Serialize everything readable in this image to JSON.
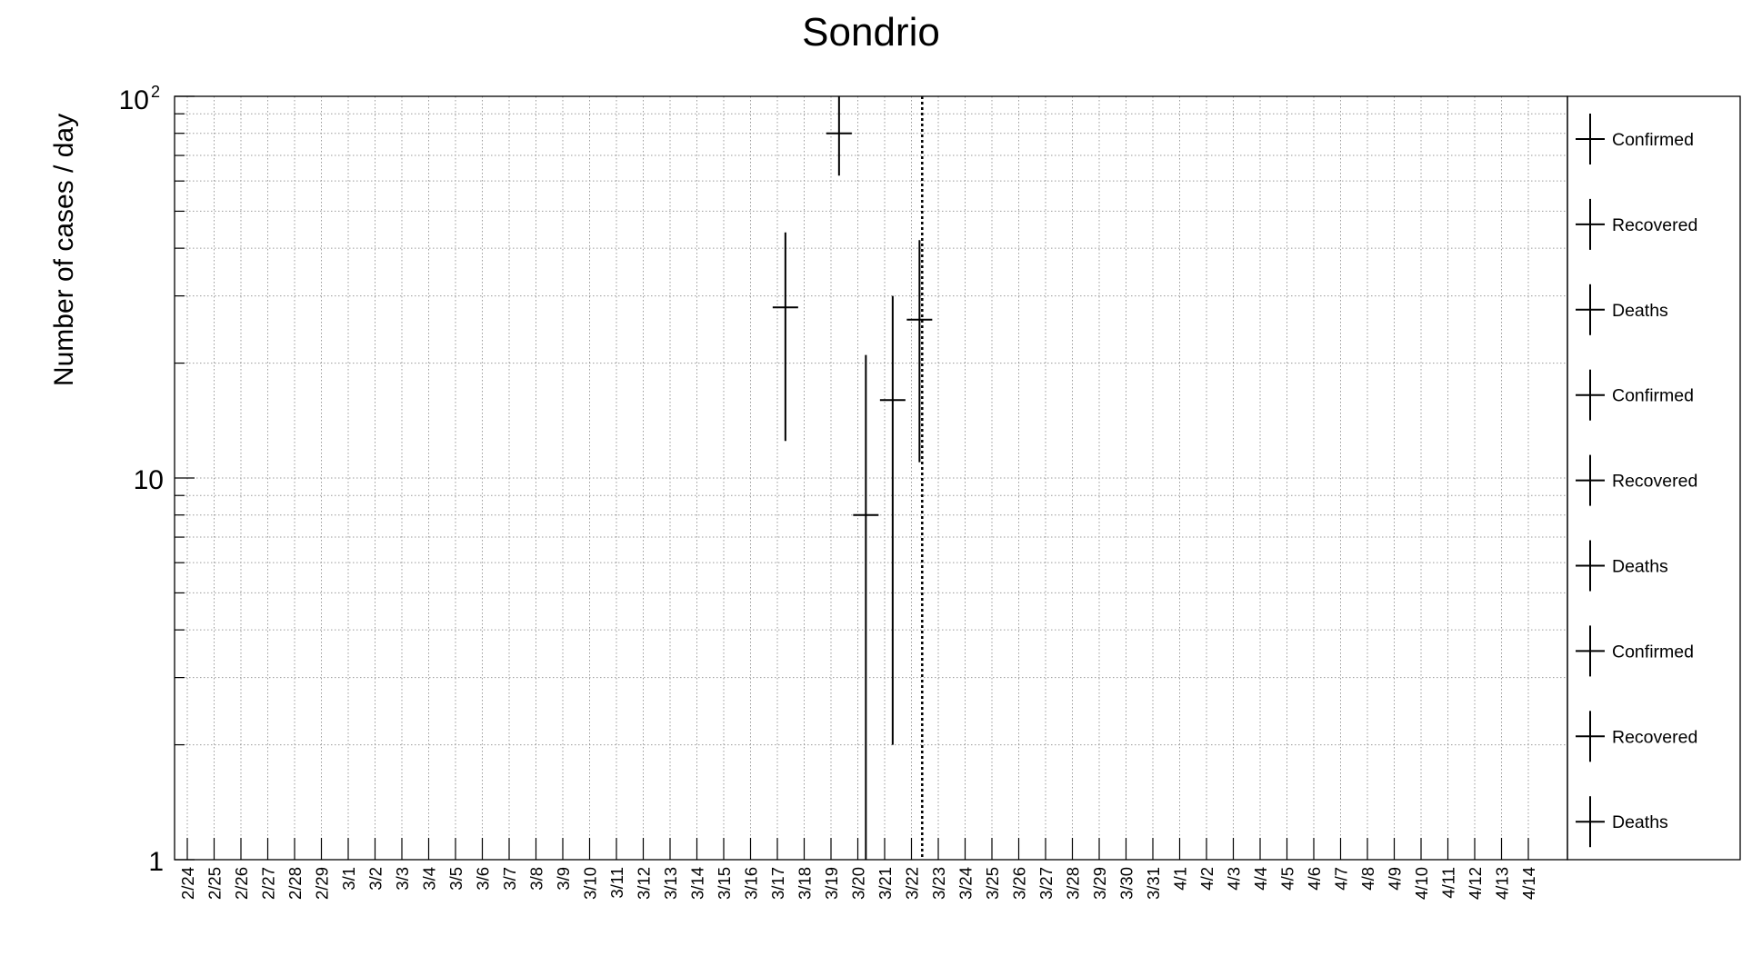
{
  "chart_data": {
    "type": "scatter",
    "title": "Sondrio",
    "ylabel": "Number of cases / day",
    "xlabel": "",
    "yscale": "log",
    "ylim": [
      1,
      100
    ],
    "ytick_labels": {
      "one": "1",
      "ten": "10",
      "hundred_base": "10",
      "hundred_exp": "2"
    },
    "grid": true,
    "categories": [
      "2/24",
      "2/25",
      "2/26",
      "2/27",
      "2/28",
      "2/29",
      "3/1",
      "3/2",
      "3/3",
      "3/4",
      "3/5",
      "3/6",
      "3/7",
      "3/8",
      "3/9",
      "3/10",
      "3/11",
      "3/12",
      "3/13",
      "3/14",
      "3/15",
      "3/16",
      "3/17",
      "3/18",
      "3/19",
      "3/20",
      "3/21",
      "3/22",
      "3/23",
      "3/24",
      "3/25",
      "3/26",
      "3/27",
      "3/28",
      "3/29",
      "3/30",
      "3/31",
      "4/1",
      "4/2",
      "4/3",
      "4/4",
      "4/5",
      "4/6",
      "4/7",
      "4/8",
      "4/9",
      "4/10",
      "4/11",
      "4/12",
      "4/13",
      "4/14"
    ],
    "marker_date": "3/23",
    "series": [
      {
        "points": [
          {
            "x": "3/17",
            "y": 28,
            "ylow": 12.5,
            "yhigh": 44
          },
          {
            "x": "3/19",
            "y": 80,
            "ylow": 62,
            "yhigh": 100
          },
          {
            "x": "3/20",
            "y": 8,
            "ylow": 1,
            "yhigh": 21
          },
          {
            "x": "3/21",
            "y": 16,
            "ylow": 2,
            "yhigh": 30
          },
          {
            "x": "3/22",
            "y": 26,
            "ylow": 11,
            "yhigh": 42
          }
        ]
      }
    ],
    "legend": {
      "placement": "right",
      "entries": [
        "Confirmed",
        "Recovered",
        "Deaths",
        "Confirmed",
        "Recovered",
        "Deaths",
        "Confirmed",
        "Recovered",
        "Deaths"
      ]
    }
  }
}
